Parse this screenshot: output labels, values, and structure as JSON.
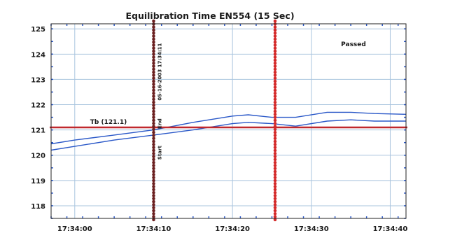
{
  "chart_data": {
    "type": "line",
    "title": "Equilibration Time EN554 (15 Sec)",
    "status_label": "Passed",
    "ylim": [
      117.5,
      125.2
    ],
    "y_ticks": [
      125,
      124,
      123,
      122,
      121,
      120,
      119,
      118
    ],
    "y_tick_labels": [
      "125",
      "124",
      "123",
      "122",
      "121",
      "120",
      "119",
      "118"
    ],
    "xlim_seconds": [
      -3,
      42
    ],
    "x_ticks": [
      0,
      10,
      20,
      30,
      40
    ],
    "x_tick_labels": [
      "17:34:00",
      "17:34:10",
      "17:34:20",
      "17:34:30",
      "17:34:40"
    ],
    "threshold": {
      "label": "Tb (121.1)",
      "value": 121.1,
      "color": "#c0282d"
    },
    "markers": [
      {
        "x": 10,
        "color": "#6b2020",
        "labels": [
          "05-16-2003 17:34:11",
          "End",
          "Start"
        ]
      },
      {
        "x": 25.4,
        "color": "#d42a2a",
        "labels": []
      }
    ],
    "series": [
      {
        "color": "#2a58c8",
        "x": [
          -3,
          0,
          5,
          10,
          15,
          20,
          22,
          25,
          28,
          32,
          35,
          38,
          42
        ],
        "y": [
          120.45,
          120.6,
          120.8,
          121.0,
          121.3,
          121.55,
          121.6,
          121.5,
          121.5,
          121.7,
          121.7,
          121.65,
          121.62
        ]
      },
      {
        "color": "#2a58c8",
        "x": [
          -3,
          0,
          5,
          10,
          15,
          20,
          22,
          25,
          28,
          32,
          35,
          38,
          42
        ],
        "y": [
          120.2,
          120.35,
          120.6,
          120.8,
          121.0,
          121.25,
          121.3,
          121.25,
          121.15,
          121.35,
          121.4,
          121.35,
          121.35
        ]
      }
    ]
  }
}
